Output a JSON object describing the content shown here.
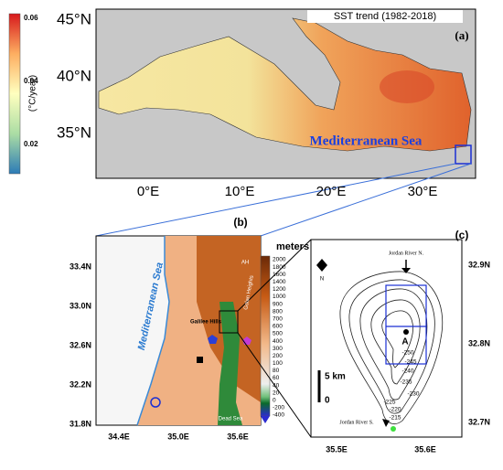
{
  "panel_a": {
    "label": "(a)",
    "title": "SST trend (1982-2018)",
    "sea_name": "Mediterranean  Sea",
    "colorbar_unit": "(°C/year)",
    "colorbar_ticks": [
      "0.06",
      "0.04",
      "0.02"
    ],
    "lat_labels": [
      "45°N",
      "40°N",
      "35°N"
    ],
    "lon_labels": [
      "0°E",
      "10°E",
      "20°E",
      "30°E"
    ]
  },
  "panel_b": {
    "label": "(b)",
    "colorbar_unit": "meters",
    "colorbar_ticks": [
      "2000",
      "1800",
      "1600",
      "1400",
      "1200",
      "1000",
      "900",
      "800",
      "700",
      "600",
      "500",
      "400",
      "300",
      "200",
      "100",
      "80",
      "60",
      "40",
      "20",
      "0",
      "-200",
      "-400"
    ],
    "lat_labels": [
      "33.4N",
      "33.0N",
      "32.6N",
      "32.2N",
      "31.8N"
    ],
    "lon_labels": [
      "34.4E",
      "35.0E",
      "35.6E"
    ],
    "sea_name": "Mediterranean Sea",
    "galilee": "Galilee Hills",
    "golan": "Golan Heights",
    "ah": "AH",
    "dead_sea": "Dead Sea"
  },
  "panel_c": {
    "label": "(c)",
    "lat_labels": [
      "32.9N",
      "32.8N",
      "32.7N"
    ],
    "lon_labels": [
      "35.5E",
      "35.6E"
    ],
    "river_north": "Jordan River N.",
    "river_south": "Jordan River S.",
    "north": "N",
    "scale": "5 km",
    "scale_zero": "0",
    "station": "A",
    "contours": [
      "-250",
      "-245",
      "-240",
      "-235",
      "-230",
      "-225",
      "-220",
      "-215"
    ]
  }
}
